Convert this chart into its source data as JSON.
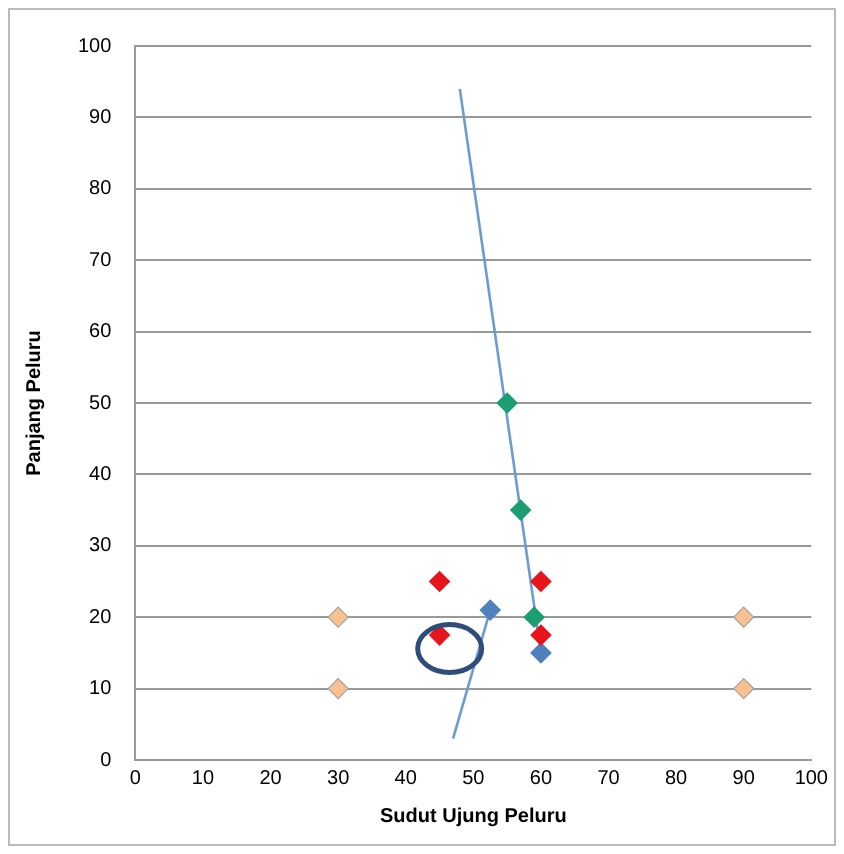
{
  "chart_data": {
    "type": "scatter",
    "xlabel": "Sudut Ujung Peluru",
    "ylabel": "Panjang Peluru",
    "xlim": [
      0,
      100
    ],
    "xticks": [
      0,
      10,
      20,
      30,
      40,
      50,
      60,
      70,
      80,
      90,
      100
    ],
    "ylim": [
      0,
      100
    ],
    "yticks": [
      0,
      10,
      20,
      30,
      40,
      50,
      60,
      70,
      80,
      90,
      100
    ],
    "grid": "y",
    "legend": false,
    "marker": "diamond",
    "series": [
      {
        "type": "line",
        "marker": "none",
        "color": "#6a9bd1",
        "x": [
          48,
          60
        ],
        "values": [
          94,
          15
        ]
      },
      {
        "type": "line",
        "marker": "none",
        "color": "#6a9bd1",
        "x": [
          47,
          52.5
        ],
        "values": [
          3,
          21
        ]
      },
      {
        "color": "#1a9e72",
        "x": [
          55,
          57,
          59
        ],
        "values": [
          50,
          35,
          20
        ]
      },
      {
        "color": "#e8141c",
        "x": [
          45,
          45,
          60,
          60
        ],
        "values": [
          25,
          17.5,
          25,
          17.5
        ]
      },
      {
        "color": "#4f81bd",
        "x": [
          52.5,
          60
        ],
        "values": [
          21,
          15
        ]
      },
      {
        "color": "#f9c090",
        "x": [
          30,
          30,
          90,
          90
        ],
        "values": [
          20,
          10,
          20,
          10
        ]
      }
    ]
  }
}
